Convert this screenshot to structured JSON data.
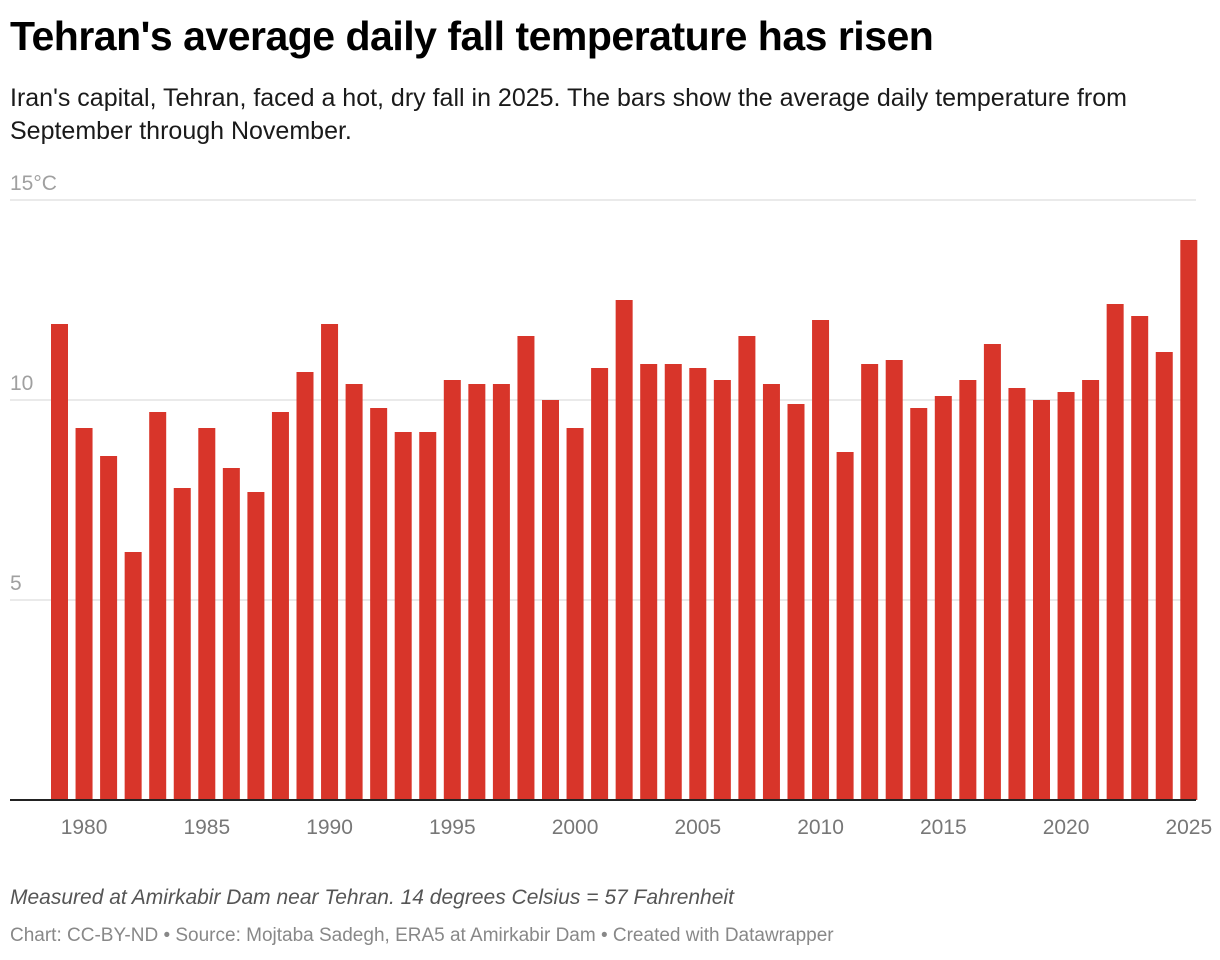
{
  "header": {
    "title": "Tehran's average daily fall temperature has risen",
    "subtitle": "Iran's capital, Tehran, faced a hot, dry fall in 2025. The bars show the average daily temperature from September through November."
  },
  "footer": {
    "note": "Measured at Amirkabir Dam near Tehran. 14 degrees Celsius = 57 Fahrenheit",
    "credits": "Chart: CC-BY-ND • Source: Mojtaba Sadegh, ERA5 at Amirkabir Dam • Created with Datawrapper"
  },
  "chart_data": {
    "type": "bar",
    "title": "Tehran's average daily fall temperature has risen",
    "xlabel": "",
    "ylabel": "",
    "ylim": [
      0,
      15
    ],
    "y_ticks": [
      {
        "value": 15,
        "label": "15°C"
      },
      {
        "value": 10,
        "label": "10"
      },
      {
        "value": 5,
        "label": "5"
      }
    ],
    "x_ticks": [
      {
        "value": 1980,
        "label": "1980"
      },
      {
        "value": 1985,
        "label": "1985"
      },
      {
        "value": 1990,
        "label": "1990"
      },
      {
        "value": 1995,
        "label": "1995"
      },
      {
        "value": 2000,
        "label": "2000"
      },
      {
        "value": 2005,
        "label": "2005"
      },
      {
        "value": 2010,
        "label": "2010"
      },
      {
        "value": 2015,
        "label": "2015"
      },
      {
        "value": 2020,
        "label": "2020"
      },
      {
        "value": 2025,
        "label": "2025"
      }
    ],
    "bar_color": "#d8352a",
    "categories": [
      1979,
      1980,
      1981,
      1982,
      1983,
      1984,
      1985,
      1986,
      1987,
      1988,
      1989,
      1990,
      1991,
      1992,
      1993,
      1994,
      1995,
      1996,
      1997,
      1998,
      1999,
      2000,
      2001,
      2002,
      2003,
      2004,
      2005,
      2006,
      2007,
      2008,
      2009,
      2010,
      2011,
      2012,
      2013,
      2014,
      2015,
      2016,
      2017,
      2018,
      2019,
      2020,
      2021,
      2022,
      2023,
      2024,
      2025
    ],
    "values": [
      11.9,
      9.3,
      8.6,
      6.2,
      9.7,
      7.8,
      9.3,
      8.3,
      7.7,
      9.7,
      10.7,
      11.9,
      10.4,
      9.8,
      9.2,
      9.2,
      10.5,
      10.4,
      10.4,
      11.6,
      10.0,
      9.3,
      10.8,
      12.5,
      10.9,
      10.9,
      10.8,
      10.5,
      11.6,
      10.4,
      9.9,
      12.0,
      8.7,
      10.9,
      11.0,
      9.8,
      10.1,
      10.5,
      11.4,
      10.3,
      10.0,
      10.2,
      10.5,
      12.4,
      12.1,
      11.2,
      14.0
    ]
  }
}
